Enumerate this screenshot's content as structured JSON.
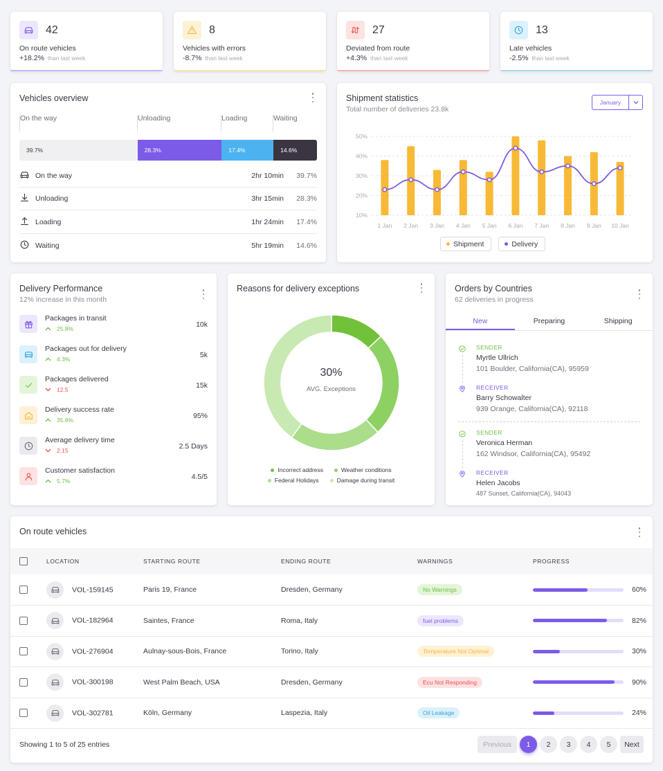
{
  "stats": [
    {
      "value": "42",
      "label": "On route vehicles",
      "change": "+18.2%",
      "note": "than last week",
      "icon": "car-icon",
      "bg": "#ede7fd",
      "fg": "#7c5be8",
      "line": "#c9b8f7"
    },
    {
      "value": "8",
      "label": "Vehicles with errors",
      "change": "-8.7%",
      "note": "than last week",
      "icon": "alert-triangle-icon",
      "bg": "#fff1d6",
      "fg": "#f5b63a",
      "line": "#fbe2a8"
    },
    {
      "value": "27",
      "label": "Deviated from route",
      "change": "+4.3%",
      "note": "than last week",
      "icon": "route-icon",
      "bg": "#fde2e2",
      "fg": "#e8544f",
      "line": "#f6b5b3"
    },
    {
      "value": "13",
      "label": "Late vehicles",
      "change": "-2.5%",
      "note": "than last week",
      "icon": "clock-icon",
      "bg": "#dcf1fb",
      "fg": "#2fa6dc",
      "line": "#a7dcf3"
    }
  ],
  "overview": {
    "title": "Vehicles overview",
    "labels": [
      "On the way",
      "Unloading",
      "Loading",
      "Waiting"
    ],
    "bar": [
      {
        "pct": "39.7%",
        "value": 39.7,
        "bg": "#f0f0f2",
        "fg": "#3a3541"
      },
      {
        "pct": "28.3%",
        "value": 28.3,
        "bg": "#7c5be8",
        "fg": "#ffffff"
      },
      {
        "pct": "17.4%",
        "value": 17.4,
        "bg": "#4cb3f0",
        "fg": "#ffffff"
      },
      {
        "pct": "14.6%",
        "value": 14.6,
        "bg": "#3a3541",
        "fg": "#ffffff"
      }
    ],
    "rows": [
      {
        "icon": "car-icon",
        "label": "On the way",
        "time": "2hr 10min",
        "pct": "39.7%"
      },
      {
        "icon": "download-icon",
        "label": "Unloading",
        "time": "3hr 15min",
        "pct": "28.3%"
      },
      {
        "icon": "upload-icon",
        "label": "Loading",
        "time": "1hr 24min",
        "pct": "17.4%"
      },
      {
        "icon": "clock-icon",
        "label": "Waiting",
        "time": "5hr 19min",
        "pct": "14.6%"
      }
    ]
  },
  "shipment": {
    "title": "Shipment statistics",
    "subtitle": "Total number of deliveries 23.8k",
    "month": "January"
  },
  "chart_data": {
    "type": "bar",
    "title": "Shipment statistics",
    "categories": [
      "1 Jan",
      "2 Jan",
      "3 Jan",
      "4 Jan",
      "5 Jan",
      "6 Jan",
      "7 Jan",
      "8 Jan",
      "9 Jan",
      "10 Jan"
    ],
    "series": [
      {
        "name": "Shipment",
        "type": "bar",
        "color": "#f8b936",
        "values": [
          38,
          45,
          33,
          38,
          32,
          50,
          48,
          40,
          42,
          37
        ]
      },
      {
        "name": "Delivery",
        "type": "line",
        "color": "#7c5be8",
        "values": [
          23,
          28,
          23,
          32,
          28,
          44,
          32,
          35,
          26,
          34
        ]
      }
    ],
    "yticks": [
      "10%",
      "20%",
      "30%",
      "40%",
      "50%"
    ],
    "ylim": [
      10,
      50
    ],
    "legend": [
      "Shipment",
      "Delivery"
    ]
  },
  "performance": {
    "title": "Delivery Performance",
    "subtitle": "12% increase in this month",
    "items": [
      {
        "icon": "gift-icon",
        "label": "Packages in transit",
        "change": "25.8%",
        "dir": "up",
        "value": "10k",
        "bg": "#ede7fd",
        "fg": "#7c5be8"
      },
      {
        "icon": "truck-icon",
        "label": "Packages out for delivery",
        "change": "4.3%",
        "dir": "up",
        "value": "5k",
        "bg": "#dcf1fb",
        "fg": "#2fa6dc"
      },
      {
        "icon": "check-icon",
        "label": "Packages delivered",
        "change": "12.5",
        "dir": "down",
        "value": "15k",
        "bg": "#e3f5d8",
        "fg": "#6cc043"
      },
      {
        "icon": "home-icon",
        "label": "Delivery success rate",
        "change": "35.6%",
        "dir": "up",
        "value": "95%",
        "bg": "#fff1d6",
        "fg": "#f5b63a"
      },
      {
        "icon": "clock-icon",
        "label": "Average delivery time",
        "change": "2.15",
        "dir": "down",
        "value": "2.5 Days",
        "bg": "#ebebef",
        "fg": "#6d6f77"
      },
      {
        "icon": "user-icon",
        "label": "Customer satisfaction",
        "change": "5.7%",
        "dir": "up",
        "value": "4.5/5",
        "bg": "#fde2e2",
        "fg": "#e8544f"
      }
    ]
  },
  "exceptions": {
    "title": "Reasons for delivery exceptions",
    "center_value": "30%",
    "center_label": "AVG. Exceptions",
    "slices": [
      {
        "label": "Incorrect address",
        "value": 13,
        "color": "#72c13b"
      },
      {
        "label": "Weather conditions",
        "value": 25,
        "color": "#8ed163"
      },
      {
        "label": "Federal Holidays",
        "value": 22,
        "color": "#abdd8b"
      },
      {
        "label": "Damage during transit",
        "value": 40,
        "color": "#c8e9b2"
      }
    ]
  },
  "orders": {
    "title": "Orders by Countries",
    "subtitle": "62 deliveries in progress",
    "tabs": [
      "New",
      "Preparing",
      "Shipping"
    ],
    "entries": [
      {
        "role": "SENDER",
        "name": "Myrtle Ullrich",
        "address": "101 Boulder, California(CA), 95959"
      },
      {
        "role": "RECEIVER",
        "name": "Barry Schowalter",
        "address": "939 Orange, California(CA), 92118"
      },
      {
        "role": "SENDER",
        "name": "Veronica Herman",
        "address": "162 Windsor, California(CA), 95492"
      },
      {
        "role": "RECEIVER",
        "name": "Helen Jacobs",
        "address": "487 Sunset, California(CA), 94043"
      }
    ]
  },
  "route_table": {
    "title": "On route vehicles",
    "headers": [
      "LOCATION",
      "STARTING ROUTE",
      "ENDING ROUTE",
      "WARNINGS",
      "PROGRESS"
    ],
    "rows": [
      {
        "id": "VOL-159145",
        "start": "Paris 19, France",
        "end": "Dresden, Germany",
        "warning": "No Warnings",
        "wbg": "#e3f5d8",
        "wfg": "#6cc043",
        "progress": 60,
        "progress_label": "60%"
      },
      {
        "id": "VOL-182964",
        "start": "Saintes, France",
        "end": "Roma, Italy",
        "warning": "fuel problems",
        "wbg": "#ede7fd",
        "wfg": "#7c5be8",
        "progress": 82,
        "progress_label": "82%"
      },
      {
        "id": "VOL-276904",
        "start": "Aulnay-sous-Bois, France",
        "end": "Torino, Italy",
        "warning": "Temperature Not Optimal",
        "wbg": "#fff1d6",
        "wfg": "#f5b63a",
        "progress": 30,
        "progress_label": "30%"
      },
      {
        "id": "VOL-300198",
        "start": "West Palm Beach, USA",
        "end": "Dresden, Germany",
        "warning": "Ecu Not Responding",
        "wbg": "#fde2e2",
        "wfg": "#e8544f",
        "progress": 90,
        "progress_label": "90%"
      },
      {
        "id": "VOL-302781",
        "start": "Köln, Germany",
        "end": "Laspezia, Italy",
        "warning": "Oil Leakage",
        "wbg": "#dcf1fb",
        "wfg": "#2fa6dc",
        "progress": 24,
        "progress_label": "24%"
      }
    ],
    "footer": "Showing 1 to 5 of 25 entries",
    "pagination": {
      "prev": "Previous",
      "pages": [
        "1",
        "2",
        "3",
        "4",
        "5"
      ],
      "next": "Next"
    }
  }
}
